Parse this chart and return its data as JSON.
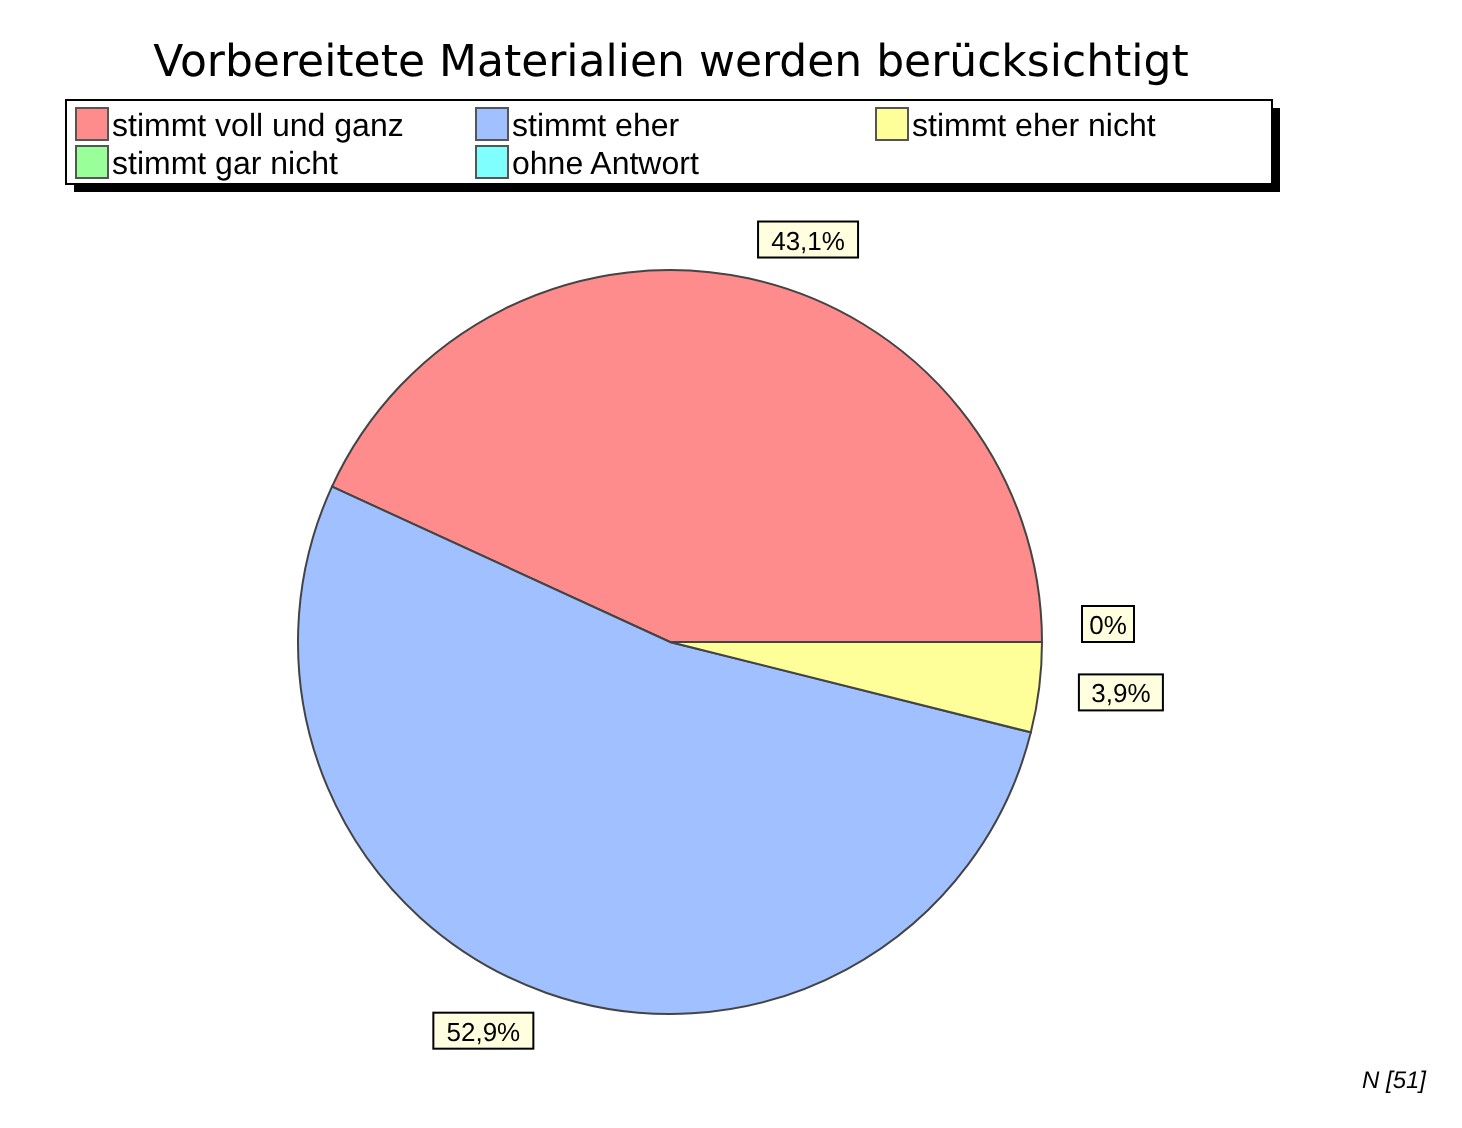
{
  "chart_data": {
    "type": "pie",
    "title": "Vorbereitete Materialien werden berücksichtigt",
    "categories": [
      "stimmt voll und ganz",
      "stimmt eher",
      "stimmt eher nicht",
      "stimmt gar nicht",
      "ohne Antwort"
    ],
    "values": [
      43.1,
      52.9,
      3.9,
      0,
      0
    ],
    "colors": [
      "#ff8c8c",
      "#a0c0ff",
      "#ffff99",
      "#99ff99",
      "#80ffff"
    ],
    "value_labels": [
      "43,1%",
      "52,9%",
      "3,9%",
      "0%",
      null
    ],
    "legend": "top",
    "annotations": [
      "N [51]"
    ]
  }
}
